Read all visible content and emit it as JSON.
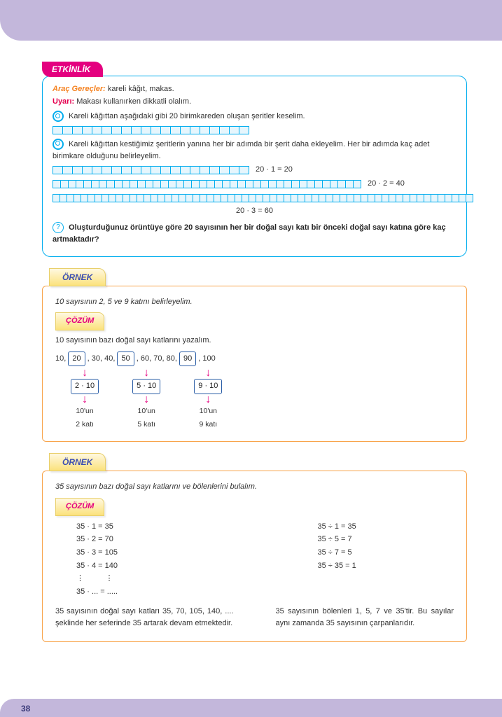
{
  "page_number": "38",
  "etkinlik": {
    "tab": "ETKİNLİK",
    "materials_label": "Araç Gereçler:",
    "materials": " kareli kâğıt, makas.",
    "warn_label": "Uyarı:",
    "warn_text": "  Makası kullanırken dikkatli olalım.",
    "task1": " Kareli kâğıttan aşağıdaki gibi 20 birimkareden oluşan şeritler keselim.",
    "task2": " Kareli kâğıttan kestiğimiz şeritlerin yanına her bir adımda bir şerit daha ekleyelim. Her bir adımda kaç adet birimkare olduğunu belirleyelim.",
    "eq1": "20 · 1 = 20",
    "eq2": "20 · 2 = 40",
    "eq3": "20 · 3 = 60",
    "question": "Oluşturduğunuz örüntüye göre 20 sayısının her bir doğal sayı katı bir önceki doğal sayı katına  göre kaç artmaktadır?"
  },
  "ornek1": {
    "tab": "ÖRNEK",
    "intro": "10 sayısının 2, 5 ve 9 katını belirleyelim.",
    "cozum": "ÇÖZÜM",
    "line1": "10 sayısının bazı doğal sayı katlarını yazalım.",
    "seq_prefix": "10, ",
    "n20": "20",
    "seq_mid1": ", 30, 40, ",
    "n50": "50",
    "seq_mid2": ", 60, 70, 80, ",
    "n90": "90",
    "seq_end": ", 100",
    "expr2": "2 · 10",
    "expr5": "5 · 10",
    "expr9": "9 · 10",
    "lbl_top": "10'un",
    "lbl2": "2 katı",
    "lbl5": "5 katı",
    "lbl9": "9 katı"
  },
  "ornek2": {
    "tab": "ÖRNEK",
    "intro": "35 sayısının bazı doğal sayı katlarını ve bölenlerini bulalım.",
    "cozum": "ÇÖZÜM",
    "m1": "35 · 1  =  35",
    "m2": "35 · 2  =  70",
    "m3": "35 · 3  =  105",
    "m4": "35 · 4  =  140",
    "mdots": "⋮          ⋮",
    "mlast": "35 · ... =  .....",
    "d1": "35 ÷ 1 = 35",
    "d2": "35 ÷ 5 = 7",
    "d3": "35 ÷ 7 = 5",
    "d4": "35 ÷ 35 = 1",
    "sum_left": "35 sayısının  doğal sayı katları 35, 70, 105, 140, .... şeklinde her seferinde 35 artarak devam etmektedir.",
    "sum_right": "35 sayısının bölenleri 1, 5, 7 ve 35'tir. Bu sayılar aynı zamanda 35 sayısının çarpanlarıdır."
  }
}
